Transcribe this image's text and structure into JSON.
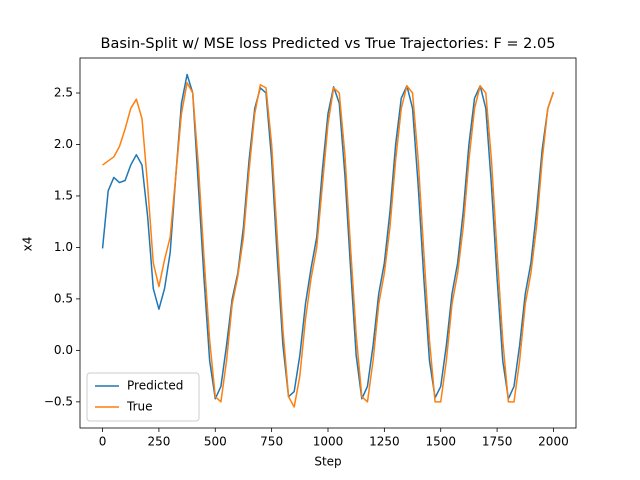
{
  "chart_data": {
    "type": "line",
    "title": "Basin-Split w/ MSE loss Predicted vs True Trajectories: F = 2.05",
    "x_label": "Step",
    "y_label": "x4",
    "x": [
      0,
      25,
      50,
      75,
      100,
      125,
      150,
      175,
      200,
      225,
      250,
      275,
      300,
      325,
      350,
      375,
      400,
      425,
      450,
      475,
      500,
      525,
      550,
      575,
      600,
      625,
      650,
      675,
      700,
      725,
      750,
      775,
      800,
      825,
      850,
      875,
      900,
      925,
      950,
      975,
      1000,
      1025,
      1050,
      1075,
      1100,
      1125,
      1150,
      1175,
      1200,
      1225,
      1250,
      1275,
      1300,
      1325,
      1350,
      1375,
      1400,
      1425,
      1450,
      1475,
      1500,
      1525,
      1550,
      1575,
      1600,
      1625,
      1650,
      1675,
      1700,
      1725,
      1750,
      1775,
      1800,
      1825,
      1850,
      1875,
      1900,
      1925,
      1950,
      1975,
      2000
    ],
    "series": [
      {
        "name": "Predicted",
        "color": "#1f77b4",
        "values": [
          0.99,
          1.55,
          1.68,
          1.63,
          1.65,
          1.8,
          1.9,
          1.8,
          1.3,
          0.6,
          0.4,
          0.6,
          0.95,
          1.7,
          2.4,
          2.68,
          2.5,
          1.6,
          0.7,
          -0.1,
          -0.47,
          -0.35,
          0.05,
          0.5,
          0.75,
          1.2,
          1.85,
          2.35,
          2.55,
          2.5,
          1.85,
          0.9,
          0.05,
          -0.45,
          -0.4,
          -0.05,
          0.45,
          0.8,
          1.1,
          1.75,
          2.3,
          2.56,
          2.4,
          1.7,
          0.8,
          -0.05,
          -0.47,
          -0.35,
          0.05,
          0.55,
          0.85,
          1.35,
          2.0,
          2.45,
          2.57,
          2.35,
          1.6,
          0.7,
          -0.1,
          -0.46,
          -0.35,
          0.05,
          0.55,
          0.85,
          1.35,
          2.0,
          2.45,
          2.57,
          2.35,
          1.6,
          0.7,
          -0.1,
          -0.47,
          -0.35,
          0.05,
          0.55,
          0.85,
          1.35,
          1.95,
          2.35,
          2.51
        ]
      },
      {
        "name": "True",
        "color": "#ff7f0e",
        "values": [
          1.8,
          1.84,
          1.88,
          1.98,
          2.15,
          2.35,
          2.44,
          2.25,
          1.6,
          0.85,
          0.62,
          0.88,
          1.1,
          1.7,
          2.3,
          2.6,
          2.5,
          1.8,
          0.9,
          0.1,
          -0.45,
          -0.5,
          -0.1,
          0.45,
          0.72,
          1.1,
          1.75,
          2.3,
          2.58,
          2.55,
          2.0,
          1.1,
          0.2,
          -0.45,
          -0.55,
          -0.25,
          0.3,
          0.7,
          1.0,
          1.6,
          2.2,
          2.55,
          2.5,
          1.9,
          1.0,
          0.15,
          -0.45,
          -0.5,
          -0.1,
          0.45,
          0.75,
          1.2,
          1.85,
          2.35,
          2.57,
          2.5,
          1.85,
          0.95,
          0.1,
          -0.5,
          -0.5,
          -0.1,
          0.45,
          0.75,
          1.2,
          1.85,
          2.35,
          2.57,
          2.5,
          1.85,
          0.95,
          0.1,
          -0.5,
          -0.5,
          -0.1,
          0.45,
          0.75,
          1.2,
          1.85,
          2.35,
          2.51
        ]
      }
    ],
    "xlim": [
      -100,
      2100
    ],
    "ylim": [
      -0.754,
      2.84
    ],
    "xticks": [
      0,
      250,
      500,
      750,
      1000,
      1250,
      1500,
      1750,
      2000
    ],
    "yticks": [
      {
        "value": -0.5,
        "label": "−0.5"
      },
      {
        "value": 0,
        "label": "0.0"
      },
      0.5,
      {
        "value": 1,
        "label": "1.0"
      },
      1.5,
      {
        "value": 2,
        "label": "2.0"
      },
      2.5
    ],
    "legend": "lower left"
  }
}
